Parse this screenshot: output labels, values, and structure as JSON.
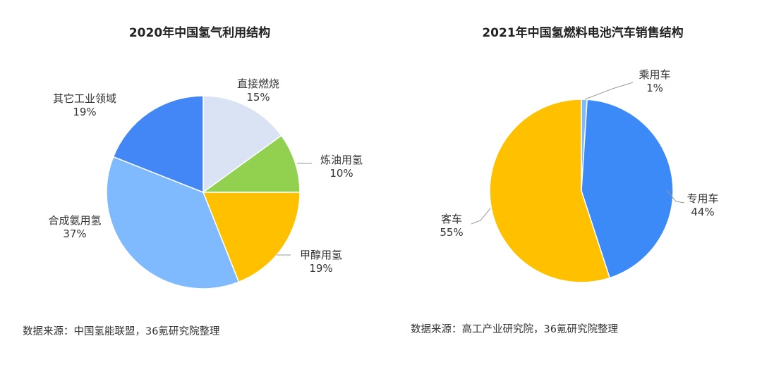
{
  "chart_data": [
    {
      "type": "pie",
      "title": "2020年中国氢气利用结构",
      "slices": [
        {
          "name": "直接燃烧",
          "value": 15,
          "label": "15%",
          "color": "#DAE3F3"
        },
        {
          "name": "炼油用氢",
          "value": 10,
          "label": "10%",
          "color": "#92D050"
        },
        {
          "name": "甲醇用氢",
          "value": 19,
          "label": "19%",
          "color": "#FFC000"
        },
        {
          "name": "合成氨用氢",
          "value": 37,
          "label": "37%",
          "color": "#7FBAFF"
        },
        {
          "name": "其它工业领域",
          "value": 19,
          "label": "19%",
          "color": "#4287F5"
        }
      ],
      "source": "数据来源：中国氢能联盟，36氪研究院整理"
    },
    {
      "type": "pie",
      "title": "2021年中国氢燃料电池汽车销售结构",
      "slices": [
        {
          "name": "乘用车",
          "value": 1,
          "label": "1%",
          "color": "#7FBAFF"
        },
        {
          "name": "专用车",
          "value": 44,
          "label": "44%",
          "color": "#3B8AF7"
        },
        {
          "name": "客车",
          "value": 55,
          "label": "55%",
          "color": "#FFC000"
        }
      ],
      "source": "数据来源：高工产业研究院，36氪研究院整理"
    }
  ]
}
